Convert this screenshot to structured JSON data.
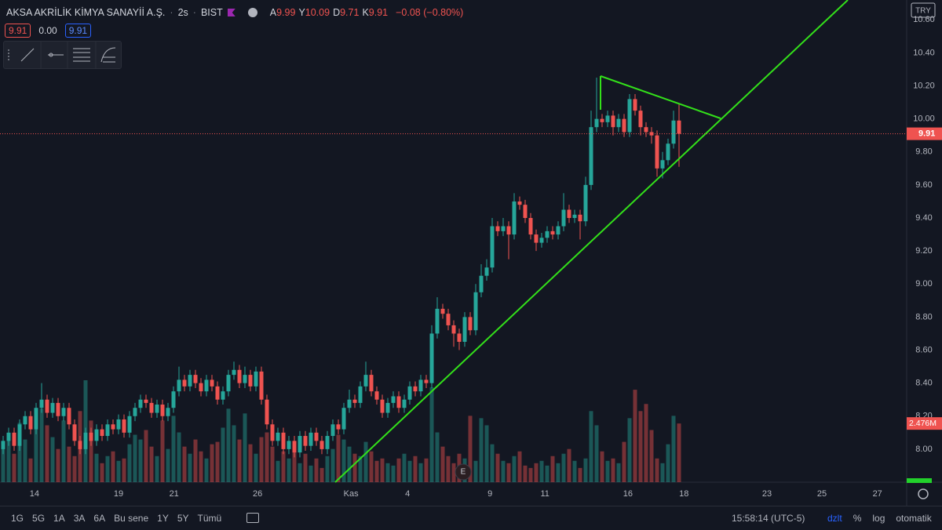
{
  "header": {
    "symbol": "AKSA AKRİLİK KİMYA SANAYİİ A.Ş.",
    "interval": "2s",
    "exchange": "BIST",
    "legend": [
      {
        "key": "A",
        "value": "9.99"
      },
      {
        "key": "Y",
        "value": "10.09"
      },
      {
        "key": "D",
        "value": "9.71"
      },
      {
        "key": "K",
        "value": "9.91"
      }
    ],
    "change": "−0.08 (−0.80%)",
    "bid": "9.91",
    "spread": "0.00",
    "ask": "9.91"
  },
  "chart_data": {
    "type": "candlestick",
    "currency": "TRY",
    "up_color": "#26a69a",
    "down_color": "#ef5350",
    "volume_up_color": "rgba(38,166,154,0.45)",
    "volume_down_color": "rgba(239,83,80,0.45)",
    "ylim": [
      7.8,
      10.72
    ],
    "yticks": [
      {
        "value": 8,
        "label": "8.00"
      },
      {
        "value": 8.2,
        "label": "8.20"
      },
      {
        "value": 8.4,
        "label": "8.40"
      },
      {
        "value": 8.6,
        "label": "8.60"
      },
      {
        "value": 8.8,
        "label": "8.80"
      },
      {
        "value": 9,
        "label": "9.00"
      },
      {
        "value": 9.2,
        "label": "9.20"
      },
      {
        "value": 9.4,
        "label": "9.40"
      },
      {
        "value": 9.6,
        "label": "9.60"
      },
      {
        "value": 9.8,
        "label": "9.80"
      },
      {
        "value": 10,
        "label": "10.00"
      },
      {
        "value": 10.2,
        "label": "10.20"
      },
      {
        "value": 10.4,
        "label": "10.40"
      },
      {
        "value": 10.6,
        "label": "10.60"
      }
    ],
    "xticks": [
      {
        "value": 5.7,
        "label": "14"
      },
      {
        "value": 21,
        "label": "19"
      },
      {
        "value": 31.1,
        "label": "21"
      },
      {
        "value": 46.3,
        "label": "26"
      },
      {
        "value": 63.3,
        "label": "Kas"
      },
      {
        "value": 73.6,
        "label": "4"
      },
      {
        "value": 88.6,
        "label": "9"
      },
      {
        "value": 98.6,
        "label": "11"
      },
      {
        "value": 113.7,
        "label": "16"
      },
      {
        "value": 123.9,
        "label": "18"
      },
      {
        "value": 139,
        "label": "23"
      },
      {
        "value": 149,
        "label": "25"
      },
      {
        "value": 159.1,
        "label": "27"
      }
    ],
    "candles": [
      [
        8.0,
        8.08,
        7.97,
        8.05
      ],
      [
        8.05,
        8.13,
        8.02,
        8.1
      ],
      [
        8.1,
        8.13,
        7.99,
        8.02
      ],
      [
        8.02,
        8.18,
        7.99,
        8.15
      ],
      [
        8.15,
        8.23,
        8.12,
        8.2
      ],
      [
        8.2,
        8.23,
        8.09,
        8.12
      ],
      [
        8.12,
        8.28,
        8.09,
        8.25
      ],
      [
        8.25,
        8.4,
        8.22,
        8.3
      ],
      [
        8.3,
        8.33,
        8.19,
        8.22
      ],
      [
        8.22,
        8.31,
        8.19,
        8.28
      ],
      [
        8.28,
        8.31,
        8.17,
        8.2
      ],
      [
        8.2,
        8.28,
        8.17,
        8.25
      ],
      [
        8.25,
        8.28,
        8.12,
        8.15
      ],
      [
        8.15,
        8.18,
        8.02,
        8.05
      ],
      [
        8.05,
        8.08,
        7.97,
        8.0
      ],
      [
        8.0,
        8.13,
        7.97,
        8.1
      ],
      [
        8.1,
        8.13,
        8.02,
        8.05
      ],
      [
        8.05,
        8.15,
        8.02,
        8.12
      ],
      [
        8.12,
        8.15,
        8.05,
        8.08
      ],
      [
        8.08,
        8.18,
        8.05,
        8.15
      ],
      [
        8.15,
        8.18,
        8.09,
        8.12
      ],
      [
        8.12,
        8.21,
        8.09,
        8.18
      ],
      [
        8.18,
        8.21,
        8.07,
        8.1
      ],
      [
        8.1,
        8.23,
        8.07,
        8.2
      ],
      [
        8.2,
        8.28,
        8.17,
        8.25
      ],
      [
        8.25,
        8.33,
        8.22,
        8.3
      ],
      [
        8.3,
        8.33,
        8.25,
        8.28
      ],
      [
        8.28,
        8.31,
        8.19,
        8.22
      ],
      [
        8.22,
        8.3,
        8.19,
        8.27
      ],
      [
        8.27,
        8.3,
        8.17,
        8.2
      ],
      [
        8.2,
        8.28,
        8.17,
        8.25
      ],
      [
        8.25,
        8.38,
        8.22,
        8.35
      ],
      [
        8.35,
        8.5,
        8.32,
        8.42
      ],
      [
        8.42,
        8.45,
        8.35,
        8.38
      ],
      [
        8.38,
        8.48,
        8.35,
        8.45
      ],
      [
        8.45,
        8.48,
        8.37,
        8.4
      ],
      [
        8.4,
        8.43,
        8.32,
        8.35
      ],
      [
        8.35,
        8.45,
        8.32,
        8.42
      ],
      [
        8.42,
        8.45,
        8.35,
        8.38
      ],
      [
        8.38,
        8.41,
        8.27,
        8.3
      ],
      [
        8.3,
        8.38,
        8.27,
        8.35
      ],
      [
        8.35,
        8.48,
        8.32,
        8.45
      ],
      [
        8.45,
        8.53,
        8.42,
        8.48
      ],
      [
        8.48,
        8.51,
        8.37,
        8.4
      ],
      [
        8.4,
        8.5,
        8.37,
        8.45
      ],
      [
        8.45,
        8.48,
        8.35,
        8.38
      ],
      [
        8.38,
        8.5,
        8.35,
        8.47
      ],
      [
        8.47,
        8.5,
        8.27,
        8.3
      ],
      [
        8.3,
        8.33,
        8.12,
        8.15
      ],
      [
        8.15,
        8.18,
        8.02,
        8.05
      ],
      [
        8.05,
        8.13,
        8.02,
        8.1
      ],
      [
        8.1,
        8.13,
        7.97,
        8.0
      ],
      [
        8.0,
        8.08,
        7.97,
        8.05
      ],
      [
        8.05,
        8.08,
        7.95,
        7.98
      ],
      [
        7.98,
        8.11,
        7.95,
        8.08
      ],
      [
        8.08,
        8.11,
        7.99,
        8.02
      ],
      [
        8.02,
        8.13,
        7.99,
        8.1
      ],
      [
        8.1,
        8.13,
        8.02,
        8.05
      ],
      [
        8.05,
        8.08,
        7.97,
        8.0
      ],
      [
        8.0,
        8.11,
        7.97,
        8.08
      ],
      [
        8.08,
        8.18,
        8.05,
        8.15
      ],
      [
        8.15,
        8.18,
        8.09,
        8.12
      ],
      [
        8.12,
        8.28,
        8.09,
        8.25
      ],
      [
        8.25,
        8.36,
        8.22,
        8.3
      ],
      [
        8.3,
        8.33,
        8.25,
        8.28
      ],
      [
        8.28,
        8.41,
        8.25,
        8.38
      ],
      [
        8.38,
        8.53,
        8.35,
        8.45
      ],
      [
        8.45,
        8.48,
        8.32,
        8.35
      ],
      [
        8.35,
        8.38,
        8.27,
        8.3
      ],
      [
        8.3,
        8.33,
        8.19,
        8.22
      ],
      [
        8.22,
        8.31,
        8.19,
        8.28
      ],
      [
        8.28,
        8.35,
        8.25,
        8.32
      ],
      [
        8.32,
        8.35,
        8.22,
        8.25
      ],
      [
        8.25,
        8.33,
        8.22,
        8.3
      ],
      [
        8.3,
        8.41,
        8.27,
        8.38
      ],
      [
        8.38,
        8.41,
        8.32,
        8.35
      ],
      [
        8.35,
        8.45,
        8.32,
        8.42
      ],
      [
        8.42,
        8.45,
        8.37,
        8.4
      ],
      [
        8.4,
        8.75,
        8.37,
        8.7
      ],
      [
        8.7,
        8.92,
        8.67,
        8.85
      ],
      [
        8.85,
        8.88,
        8.79,
        8.82
      ],
      [
        8.82,
        8.85,
        8.72,
        8.75
      ],
      [
        8.75,
        8.78,
        8.62,
        8.7
      ],
      [
        8.7,
        8.73,
        8.6,
        8.65
      ],
      [
        8.65,
        8.83,
        8.62,
        8.8
      ],
      [
        8.8,
        8.83,
        8.69,
        8.72
      ],
      [
        8.72,
        9.0,
        8.69,
        8.95
      ],
      [
        8.95,
        9.12,
        8.92,
        9.05
      ],
      [
        9.05,
        9.15,
        9.02,
        9.1
      ],
      [
        9.1,
        9.4,
        9.07,
        9.35
      ],
      [
        9.35,
        9.38,
        9.29,
        9.32
      ],
      [
        9.32,
        9.4,
        9.29,
        9.35
      ],
      [
        9.35,
        9.38,
        9.15,
        9.3
      ],
      [
        9.3,
        9.55,
        9.27,
        9.5
      ],
      [
        9.5,
        9.53,
        9.45,
        9.48
      ],
      [
        9.48,
        9.51,
        9.37,
        9.4
      ],
      [
        9.4,
        9.43,
        9.27,
        9.3
      ],
      [
        9.3,
        9.33,
        9.2,
        9.25
      ],
      [
        9.25,
        9.31,
        9.22,
        9.28
      ],
      [
        9.28,
        9.35,
        9.25,
        9.32
      ],
      [
        9.32,
        9.35,
        9.27,
        9.3
      ],
      [
        9.3,
        9.38,
        9.27,
        9.35
      ],
      [
        9.35,
        9.55,
        9.32,
        9.45
      ],
      [
        9.45,
        9.48,
        9.37,
        9.4
      ],
      [
        9.4,
        9.45,
        9.37,
        9.42
      ],
      [
        9.42,
        9.45,
        9.27,
        9.38
      ],
      [
        9.38,
        9.65,
        9.35,
        9.6
      ],
      [
        9.6,
        10.05,
        9.57,
        9.95
      ],
      [
        9.95,
        10.25,
        9.92,
        10.0
      ],
      [
        10.0,
        10.03,
        9.95,
        9.98
      ],
      [
        9.98,
        10.05,
        9.95,
        10.02
      ],
      [
        10.02,
        10.05,
        9.9,
        9.95
      ],
      [
        9.95,
        10.03,
        9.92,
        10.0
      ],
      [
        10.0,
        10.03,
        9.89,
        9.92
      ],
      [
        9.92,
        10.15,
        9.89,
        10.12
      ],
      [
        10.12,
        10.15,
        10.02,
        10.05
      ],
      [
        10.05,
        10.08,
        9.9,
        9.95
      ],
      [
        9.95,
        9.98,
        9.89,
        9.92
      ],
      [
        9.92,
        9.95,
        9.85,
        9.9
      ],
      [
        9.9,
        9.93,
        9.65,
        9.7
      ],
      [
        9.7,
        9.8,
        9.64,
        9.75
      ],
      [
        9.75,
        9.88,
        9.72,
        9.85
      ],
      [
        9.85,
        10.05,
        9.82,
        9.99
      ],
      [
        9.99,
        10.09,
        9.71,
        9.91
      ]
    ],
    "volume": [
      1.6,
      2.0,
      1.2,
      2.5,
      1.8,
      1.0,
      2.3,
      3.1,
      2.4,
      1.9,
      1.4,
      2.6,
      1.5,
      1.1,
      3.0,
      4.3,
      2.6,
      1.2,
      0.8,
      1.1,
      1.3,
      0.9,
      1.0,
      1.6,
      2.0,
      1.8,
      2.2,
      1.5,
      1.1,
      2.6,
      1.4,
      2.8,
      2.1,
      1.5,
      1.2,
      1.8,
      1.3,
      1.0,
      1.6,
      1.7,
      2.3,
      3.1,
      2.4,
      1.8,
      2.9,
      1.6,
      1.2,
      1.9,
      2.1,
      1.5,
      0.9,
      1.3,
      1.0,
      1.6,
      0.8,
      1.2,
      0.7,
      1.0,
      0.6,
      1.1,
      1.4,
      2.0,
      1.8,
      1.5,
      1.2,
      1.1,
      1.7,
      1.3,
      0.9,
      1.0,
      0.8,
      0.7,
      1.0,
      1.2,
      0.9,
      1.1,
      0.8,
      1.0,
      4.0,
      2.1,
      1.5,
      1.1,
      0.8,
      1.2,
      1.0,
      2.8,
      0.9,
      2.7,
      2.4,
      1.6,
      1.2,
      0.9,
      0.8,
      1.1,
      1.3,
      0.7,
      0.6,
      0.8,
      0.9,
      0.7,
      1.1,
      0.8,
      1.2,
      1.4,
      0.9,
      0.6,
      1.0,
      3.0,
      2.4,
      1.3,
      0.9,
      1.0,
      0.8,
      1.7,
      2.7,
      3.9,
      3.0,
      3.3,
      2.2,
      1.0,
      0.8,
      1.6,
      2.8,
      2.476
    ],
    "volume_label": "2.476M"
  },
  "footer": {
    "ranges": [
      "1G",
      "5G",
      "1A",
      "3A",
      "6A",
      "Bu sene",
      "1Y",
      "5Y",
      "Tümü"
    ],
    "time": "15:58:14 (UTC-5)",
    "options": [
      "dzlt",
      "%",
      "log",
      "otomatik"
    ]
  }
}
